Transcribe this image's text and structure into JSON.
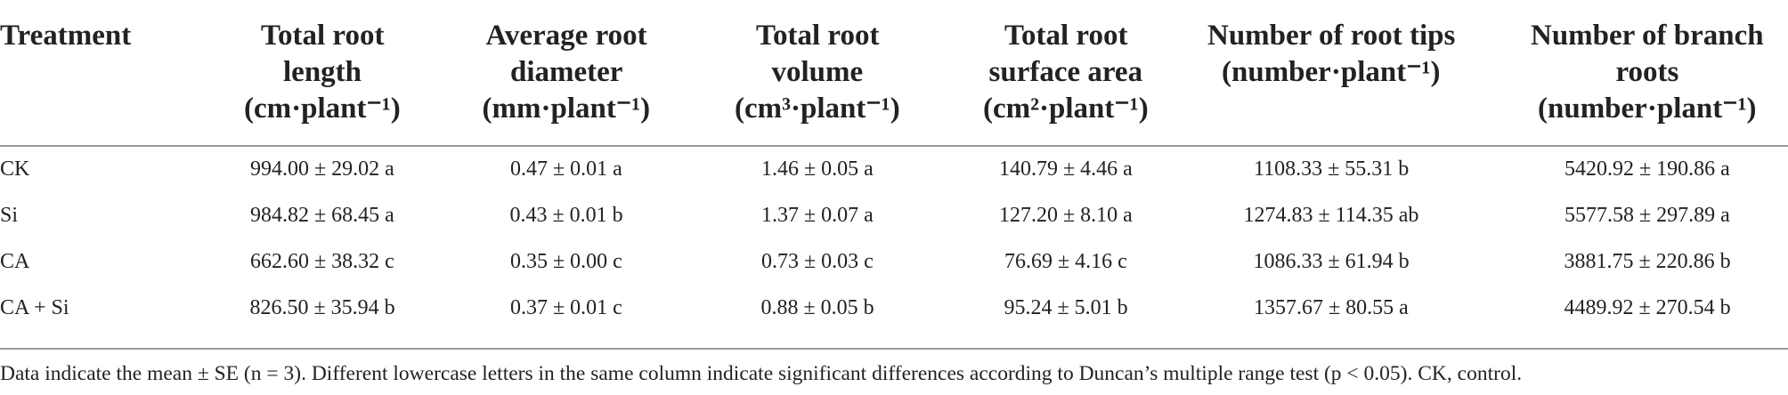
{
  "table": {
    "header": [
      [
        "Treatment"
      ],
      [
        "Total root",
        "length",
        "(cm·plant⁻¹)"
      ],
      [
        "Average root",
        "diameter",
        "(mm·plant⁻¹)"
      ],
      [
        "Total root",
        "volume",
        "(cm³·plant⁻¹)"
      ],
      [
        "Total root",
        "surface area",
        "(cm²·plant⁻¹)"
      ],
      [
        "Number of root tips",
        "(number·plant⁻¹)"
      ],
      [
        "Number of branch",
        "roots",
        "(number·plant⁻¹)"
      ]
    ],
    "rows": [
      [
        "CK",
        "994.00 ± 29.02 a",
        "0.47 ± 0.01 a",
        "1.46 ± 0.05 a",
        "140.79 ± 4.46 a",
        "1108.33 ± 55.31 b",
        "5420.92 ± 190.86 a"
      ],
      [
        "Si",
        "984.82 ± 68.45 a",
        "0.43 ± 0.01 b",
        "1.37 ± 0.07 a",
        "127.20 ± 8.10 a",
        "1274.83 ± 114.35 ab",
        "5577.58 ± 297.89 a"
      ],
      [
        "CA",
        "662.60 ± 38.32 c",
        "0.35 ± 0.00 c",
        "0.73 ± 0.03 c",
        "76.69 ± 4.16 c",
        "1086.33 ± 61.94 b",
        "3881.75 ± 220.86 b"
      ],
      [
        "CA + Si",
        "826.50 ± 35.94 b",
        "0.37 ± 0.01 c",
        "0.88 ± 0.05 b",
        "95.24 ± 5.01 b",
        "1357.67 ± 80.55 a",
        "4489.92 ± 270.54 b"
      ]
    ],
    "footnote": "Data indicate the mean ± SE (n = 3). Different lowercase letters in the same column indicate significant differences according to Duncan’s multiple range test (p < 0.05). CK, control."
  }
}
